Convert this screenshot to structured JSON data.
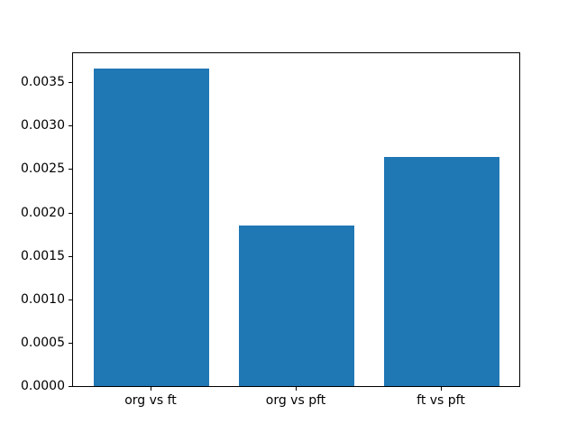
{
  "chart_data": {
    "type": "bar",
    "title": "",
    "xlabel": "",
    "ylabel": "",
    "categories": [
      "org vs ft",
      "org vs pft",
      "ft vs pft"
    ],
    "values": [
      0.00366,
      0.00185,
      0.00264
    ],
    "bar_color": "#1f77b4",
    "bar_width_fraction": 0.8,
    "ylim": [
      0,
      0.003844
    ],
    "yticks": [
      0.0,
      0.0005,
      0.001,
      0.0015,
      0.002,
      0.0025,
      0.003,
      0.0035
    ],
    "ytick_labels": [
      "0.0000",
      "0.0005",
      "0.0010",
      "0.0015",
      "0.0020",
      "0.0025",
      "0.0030",
      "0.0035"
    ],
    "grid": false,
    "legend": "none",
    "background_color": "#ffffff",
    "spine_color": "#000000"
  }
}
